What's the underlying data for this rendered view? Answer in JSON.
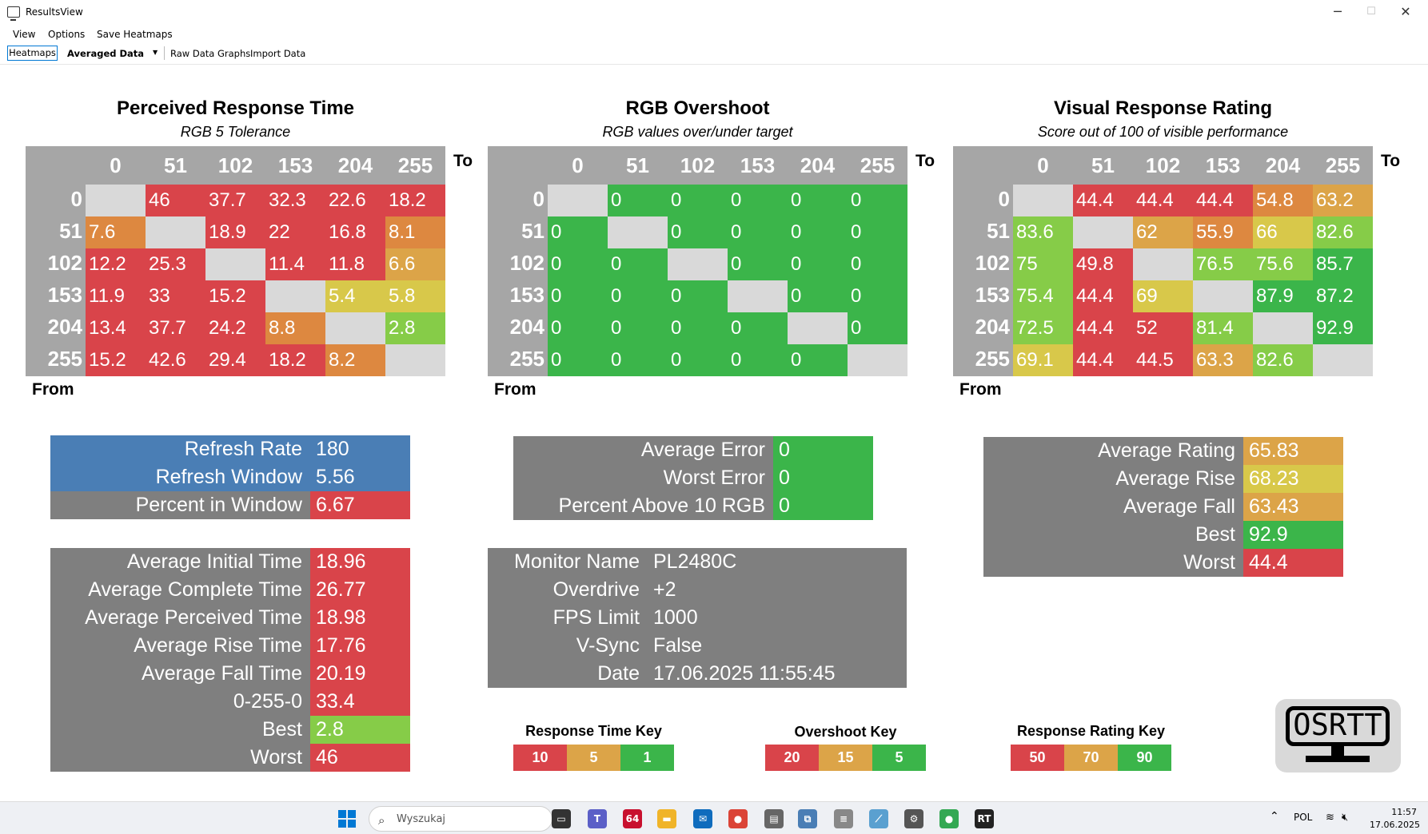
{
  "window": {
    "title": "ResultsView",
    "minimize": "─",
    "maximize": "☐",
    "close": "✕"
  },
  "menu": [
    "View",
    "Options",
    "Save Heatmaps"
  ],
  "toolbar": {
    "tab_heatmaps": "Heatmaps",
    "selector": "Averaged Data",
    "raw_graphs": "Raw Data Graphs",
    "import": "Import Data"
  },
  "colors": {
    "red": "#d9444a",
    "orange": "#dd8840",
    "orange_yellow": "#dca448",
    "yellow": "#d8c84a",
    "light_green": "#86cc48",
    "green": "#3bb54a",
    "gray": "#a6a6a6",
    "dark_gray": "#7f7f7f",
    "blue": "#4a7eb5",
    "empty": "#d9d9d9"
  },
  "axis_labels": [
    "0",
    "51",
    "102",
    "153",
    "204",
    "255"
  ],
  "to_label": "To",
  "from_label": "From",
  "heatmaps": [
    {
      "title": "Perceived Response Time",
      "subtitle": "RGB 5 Tolerance",
      "rows": [
        [
          [
            "",
            ""
          ],
          [
            "46",
            "red"
          ],
          [
            "37.7",
            "red"
          ],
          [
            "32.3",
            "red"
          ],
          [
            "22.6",
            "red"
          ],
          [
            "18.2",
            "red"
          ]
        ],
        [
          [
            "7.6",
            "orange"
          ],
          [
            "",
            ""
          ],
          [
            "18.9",
            "red"
          ],
          [
            "22",
            "red"
          ],
          [
            "16.8",
            "red"
          ],
          [
            "8.1",
            "orange"
          ]
        ],
        [
          [
            "12.2",
            "red"
          ],
          [
            "25.3",
            "red"
          ],
          [
            "",
            ""
          ],
          [
            "11.4",
            "red"
          ],
          [
            "11.8",
            "red"
          ],
          [
            "6.6",
            "orange_yellow"
          ]
        ],
        [
          [
            "11.9",
            "red"
          ],
          [
            "33",
            "red"
          ],
          [
            "15.2",
            "red"
          ],
          [
            "",
            ""
          ],
          [
            "5.4",
            "yellow"
          ],
          [
            "5.8",
            "yellow"
          ]
        ],
        [
          [
            "13.4",
            "red"
          ],
          [
            "37.7",
            "red"
          ],
          [
            "24.2",
            "red"
          ],
          [
            "8.8",
            "orange"
          ],
          [
            "",
            ""
          ],
          [
            "2.8",
            "light_green"
          ]
        ],
        [
          [
            "15.2",
            "red"
          ],
          [
            "42.6",
            "red"
          ],
          [
            "29.4",
            "red"
          ],
          [
            "18.2",
            "red"
          ],
          [
            "8.2",
            "orange"
          ],
          [
            "",
            ""
          ]
        ]
      ]
    },
    {
      "title": "RGB Overshoot",
      "subtitle": "RGB values over/under target",
      "rows": [
        [
          [
            "",
            ""
          ],
          [
            "0",
            "green"
          ],
          [
            "0",
            "green"
          ],
          [
            "0",
            "green"
          ],
          [
            "0",
            "green"
          ],
          [
            "0",
            "green"
          ]
        ],
        [
          [
            "0",
            "green"
          ],
          [
            "",
            ""
          ],
          [
            "0",
            "green"
          ],
          [
            "0",
            "green"
          ],
          [
            "0",
            "green"
          ],
          [
            "0",
            "green"
          ]
        ],
        [
          [
            "0",
            "green"
          ],
          [
            "0",
            "green"
          ],
          [
            "",
            ""
          ],
          [
            "0",
            "green"
          ],
          [
            "0",
            "green"
          ],
          [
            "0",
            "green"
          ]
        ],
        [
          [
            "0",
            "green"
          ],
          [
            "0",
            "green"
          ],
          [
            "0",
            "green"
          ],
          [
            "",
            ""
          ],
          [
            "0",
            "green"
          ],
          [
            "0",
            "green"
          ]
        ],
        [
          [
            "0",
            "green"
          ],
          [
            "0",
            "green"
          ],
          [
            "0",
            "green"
          ],
          [
            "0",
            "green"
          ],
          [
            "",
            ""
          ],
          [
            "0",
            "green"
          ]
        ],
        [
          [
            "0",
            "green"
          ],
          [
            "0",
            "green"
          ],
          [
            "0",
            "green"
          ],
          [
            "0",
            "green"
          ],
          [
            "0",
            "green"
          ],
          [
            "",
            ""
          ]
        ]
      ]
    },
    {
      "title": "Visual Response Rating",
      "subtitle": "Score out of 100 of visible performance",
      "rows": [
        [
          [
            "",
            ""
          ],
          [
            "44.4",
            "red"
          ],
          [
            "44.4",
            "red"
          ],
          [
            "44.4",
            "red"
          ],
          [
            "54.8",
            "orange"
          ],
          [
            "63.2",
            "orange_yellow"
          ]
        ],
        [
          [
            "83.6",
            "light_green"
          ],
          [
            "",
            ""
          ],
          [
            "62",
            "orange_yellow"
          ],
          [
            "55.9",
            "orange"
          ],
          [
            "66",
            "yellow"
          ],
          [
            "82.6",
            "light_green"
          ]
        ],
        [
          [
            "75",
            "light_green"
          ],
          [
            "49.8",
            "red"
          ],
          [
            "",
            ""
          ],
          [
            "76.5",
            "light_green"
          ],
          [
            "75.6",
            "light_green"
          ],
          [
            "85.7",
            "green"
          ]
        ],
        [
          [
            "75.4",
            "light_green"
          ],
          [
            "44.4",
            "red"
          ],
          [
            "69",
            "yellow"
          ],
          [
            "",
            ""
          ],
          [
            "87.9",
            "green"
          ],
          [
            "87.2",
            "green"
          ]
        ],
        [
          [
            "72.5",
            "light_green"
          ],
          [
            "44.4",
            "red"
          ],
          [
            "52",
            "red"
          ],
          [
            "81.4",
            "light_green"
          ],
          [
            "",
            ""
          ],
          [
            "92.9",
            "green"
          ]
        ],
        [
          [
            "69.1",
            "yellow"
          ],
          [
            "44.4",
            "red"
          ],
          [
            "44.5",
            "red"
          ],
          [
            "63.3",
            "orange_yellow"
          ],
          [
            "82.6",
            "light_green"
          ],
          [
            "",
            ""
          ]
        ]
      ]
    }
  ],
  "refresh_table": [
    {
      "label": "Refresh Rate",
      "value": "180",
      "label_color": "blue",
      "value_color": "blue"
    },
    {
      "label": "Refresh Window",
      "value": "5.56",
      "label_color": "blue",
      "value_color": "blue"
    },
    {
      "label": "Percent in Window",
      "value": "6.67",
      "label_color": "dark_gray",
      "value_color": "red"
    }
  ],
  "response_table": [
    {
      "label": "Average Initial Time",
      "value": "18.96",
      "value_color": "red"
    },
    {
      "label": "Average Complete Time",
      "value": "26.77",
      "value_color": "red"
    },
    {
      "label": "Average Perceived Time",
      "value": "18.98",
      "value_color": "red"
    },
    {
      "label": "Average Rise Time",
      "value": "17.76",
      "value_color": "red"
    },
    {
      "label": "Average Fall Time",
      "value": "20.19",
      "value_color": "red"
    },
    {
      "label": "0-255-0",
      "value": "33.4",
      "value_color": "red"
    },
    {
      "label": "Best",
      "value": "2.8",
      "value_color": "light_green"
    },
    {
      "label": "Worst",
      "value": "46",
      "value_color": "red"
    }
  ],
  "overshoot_table": [
    {
      "label": "Average Error",
      "value": "0",
      "value_color": "green"
    },
    {
      "label": "Worst Error",
      "value": "0",
      "value_color": "green"
    },
    {
      "label": "Percent Above 10 RGB",
      "value": "0",
      "value_color": "green"
    }
  ],
  "monitor_table": [
    {
      "label": "Monitor Name",
      "value": "PL2480C"
    },
    {
      "label": "Overdrive",
      "value": "+2"
    },
    {
      "label": "FPS Limit",
      "value": "1000"
    },
    {
      "label": "V-Sync",
      "value": "False"
    },
    {
      "label": "Date",
      "value": "17.06.2025 11:55:45"
    }
  ],
  "rating_table": [
    {
      "label": "Average Rating",
      "value": "65.83",
      "value_color": "orange_yellow"
    },
    {
      "label": "Average Rise",
      "value": "68.23",
      "value_color": "yellow"
    },
    {
      "label": "Average Fall",
      "value": "63.43",
      "value_color": "orange_yellow"
    },
    {
      "label": "Best",
      "value": "92.9",
      "value_color": "green"
    },
    {
      "label": "Worst",
      "value": "44.4",
      "value_color": "red"
    }
  ],
  "keys": [
    {
      "title": "Response Time Key",
      "cells": [
        [
          "10",
          "red"
        ],
        [
          "5",
          "orange_yellow"
        ],
        [
          "1",
          "green"
        ]
      ]
    },
    {
      "title": "Overshoot Key",
      "cells": [
        [
          "20",
          "red"
        ],
        [
          "15",
          "orange_yellow"
        ],
        [
          "5",
          "green"
        ]
      ]
    },
    {
      "title": "Response Rating Key",
      "cells": [
        [
          "50",
          "red"
        ],
        [
          "70",
          "orange_yellow"
        ],
        [
          "90",
          "green"
        ]
      ]
    }
  ],
  "logo_text": "OSRTT",
  "taskbar": {
    "search_placeholder": "Wyszukaj",
    "apps": [
      {
        "name": "task-view",
        "color": "#333",
        "glyph": "▭"
      },
      {
        "name": "teams",
        "color": "#5b5fc7",
        "glyph": "T"
      },
      {
        "name": "aida64",
        "color": "#c8102e",
        "glyph": "64"
      },
      {
        "name": "file-explorer",
        "color": "#f0b429",
        "glyph": "▬"
      },
      {
        "name": "mail",
        "color": "#0f6cbd",
        "glyph": "✉"
      },
      {
        "name": "chrome",
        "color": "#db4437",
        "glyph": "●"
      },
      {
        "name": "drive",
        "color": "#666",
        "glyph": "▤"
      },
      {
        "name": "network",
        "color": "#4a7eb5",
        "glyph": "⧉"
      },
      {
        "name": "database",
        "color": "#888",
        "glyph": "≡"
      },
      {
        "name": "pen-tool",
        "color": "#5aa0d0",
        "glyph": "⟋"
      },
      {
        "name": "settings",
        "color": "#555",
        "glyph": "⚙"
      },
      {
        "name": "chrome-alt",
        "color": "#34a853",
        "glyph": "●"
      },
      {
        "name": "osrtt-app",
        "color": "#222",
        "glyph": "RT"
      }
    ],
    "tray_lang": "POL",
    "time": "11:57",
    "date": "17.06.2025"
  }
}
